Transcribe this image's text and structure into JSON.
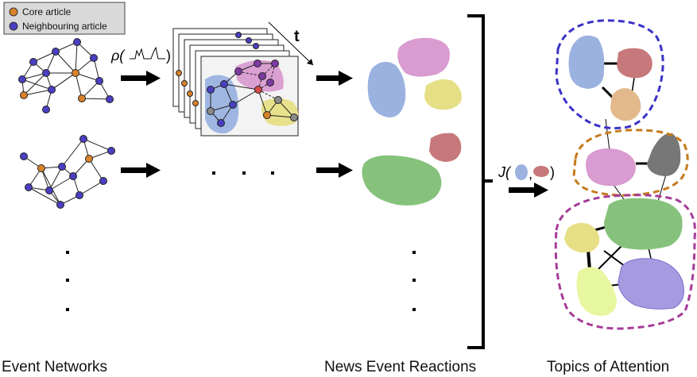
{
  "legend": {
    "core_label": "Core article",
    "neighbouring_label": "Neighbouring article"
  },
  "labels": {
    "rho_symbol": "ρ(",
    "rho_close": ")",
    "time_label": "t",
    "j_symbol": "J(",
    "j_comma": ",",
    "j_close": ")",
    "ellipsis_h": "· · ·"
  },
  "captions": {
    "event_networks": "Event Networks",
    "news_event_reactions": "News Event Reactions",
    "topics_of_attention": "Topics of Attention"
  },
  "colors": {
    "core_node": "#d8822a",
    "neighbour_node": "#4a3fc0",
    "blob_blue": "#9bb2e0",
    "blob_pink": "#d99bd0",
    "blob_yellow": "#e6df86",
    "blob_red": "#c7787a",
    "blob_green": "#86c27c",
    "blob_tan": "#e3b98c",
    "blob_grey": "#777777",
    "blob_lime": "#e7f7a0",
    "blob_purple": "#a69be0",
    "group1_dash": "#3a32c8",
    "group2_dash": "#c47a1c",
    "group3_dash": "#a43c98"
  }
}
